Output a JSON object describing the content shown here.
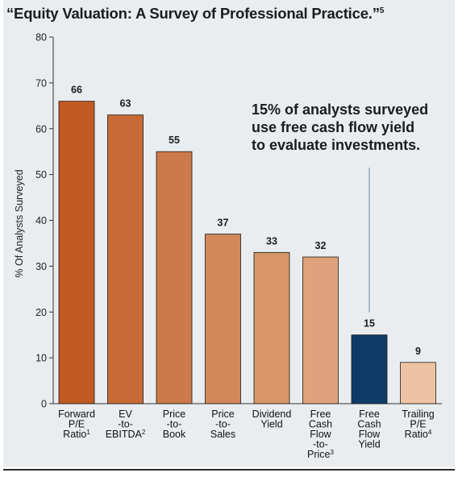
{
  "title": "“Equity Valuation: A Survey of Professional Practice.”",
  "title_sup": "5",
  "chart_data": {
    "type": "bar",
    "ylabel": "% Of Analysts Surveyed",
    "ylim": [
      0,
      80
    ],
    "yticks": [
      0,
      10,
      20,
      30,
      40,
      50,
      60,
      70,
      80
    ],
    "grid": false,
    "categories": [
      {
        "lines": [
          "Forward",
          "P/E",
          "Ratio"
        ],
        "sup": "1"
      },
      {
        "lines": [
          "EV",
          "-to-",
          "EBITDA"
        ],
        "sup": "2"
      },
      {
        "lines": [
          "Price",
          "-to-",
          "Book"
        ],
        "sup": ""
      },
      {
        "lines": [
          "Price",
          "-to-",
          "Sales"
        ],
        "sup": ""
      },
      {
        "lines": [
          "Dividend",
          "Yield"
        ],
        "sup": ""
      },
      {
        "lines": [
          "Free",
          "Cash",
          "Flow",
          "-to-",
          "Price"
        ],
        "sup": "3"
      },
      {
        "lines": [
          "Free",
          "Cash",
          "Flow",
          "Yield"
        ],
        "sup": ""
      },
      {
        "lines": [
          "Trailing",
          "P/E",
          "Ratio"
        ],
        "sup": "4"
      }
    ],
    "values": [
      66,
      63,
      55,
      37,
      33,
      32,
      15,
      9
    ],
    "colors": [
      "#c05a22",
      "#c76a36",
      "#cc7a4a",
      "#d3875a",
      "#d89668",
      "#dea37c",
      "#0d3c68",
      "#eec3a3"
    ],
    "edge_color": "#1a1a1a",
    "annotation": {
      "lines": [
        "15% of analysts surveyed",
        "use free cash flow yield",
        "to evaluate investments."
      ],
      "points_to_index": 6
    }
  }
}
